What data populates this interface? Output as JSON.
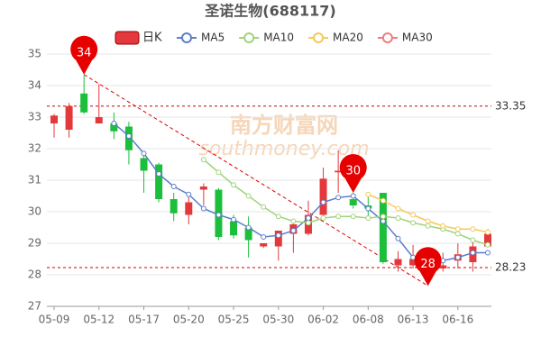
{
  "chart_data": {
    "type": "candlestick",
    "title": "圣诺生物(688117)",
    "watermark": [
      "南方财富网",
      "southmoney.com"
    ],
    "categories": [
      "05-09",
      null,
      null,
      "05-12",
      null,
      null,
      "05-17",
      null,
      null,
      "05-20",
      null,
      null,
      "05-25",
      null,
      null,
      "05-30",
      null,
      null,
      "06-02",
      null,
      null,
      "06-08",
      null,
      null,
      "06-13",
      null,
      null,
      "06-16",
      null,
      null
    ],
    "candle_name": "日K",
    "up_color": "#e4393c",
    "down_color": "#1bbf3b",
    "open": [
      32.8,
      32.6,
      33.75,
      32.8,
      32.8,
      32.7,
      31.7,
      31.5,
      30.4,
      29.9,
      30.7,
      30.7,
      29.7,
      29.5,
      28.9,
      28.9,
      29.3,
      29.3,
      29.9,
      31.25,
      30.4,
      30.2,
      30.6,
      28.3,
      28.3,
      28.45,
      28.2,
      28.45,
      28.4,
      28.9
    ],
    "high": [
      33.1,
      33.45,
      34.35,
      34.05,
      33.15,
      32.85,
      31.8,
      31.55,
      30.6,
      30.5,
      30.9,
      30.75,
      29.9,
      29.85,
      29.0,
      29.4,
      29.7,
      30.35,
      31.4,
      31.95,
      30.6,
      30.6,
      30.6,
      28.75,
      28.95,
      28.7,
      28.7,
      29.0,
      29.05,
      29.45
    ],
    "low": [
      32.35,
      32.35,
      33.1,
      32.8,
      32.3,
      31.5,
      30.6,
      30.3,
      29.7,
      29.6,
      30.2,
      29.1,
      29.15,
      28.55,
      28.85,
      28.45,
      28.7,
      29.25,
      29.8,
      30.6,
      30.1,
      29.8,
      28.35,
      28.1,
      28.2,
      27.65,
      28.1,
      28.2,
      28.1,
      28.9
    ],
    "close": [
      33.05,
      33.35,
      33.15,
      33.0,
      32.55,
      31.95,
      31.3,
      30.4,
      29.95,
      30.3,
      30.8,
      29.2,
      29.25,
      29.1,
      29.0,
      29.4,
      29.6,
      29.9,
      31.05,
      31.3,
      30.2,
      30.1,
      28.4,
      28.5,
      28.5,
      28.35,
      28.3,
      28.65,
      28.9,
      29.3
    ],
    "series": [
      {
        "name": "MA5",
        "color": "#5b7fc8",
        "values": [
          null,
          null,
          null,
          null,
          32.8,
          32.4,
          31.85,
          31.2,
          30.8,
          30.55,
          30.1,
          29.9,
          29.75,
          29.5,
          29.2,
          29.25,
          29.4,
          29.8,
          30.3,
          30.45,
          30.5,
          30.1,
          29.7,
          29.15,
          28.55,
          28.4,
          28.45,
          28.55,
          28.7,
          28.7
        ]
      },
      {
        "name": "MA10",
        "color": "#9fd47a",
        "values": [
          null,
          null,
          null,
          null,
          null,
          null,
          null,
          null,
          null,
          null,
          31.65,
          31.25,
          30.85,
          30.5,
          30.15,
          29.85,
          29.7,
          29.65,
          29.8,
          29.85,
          29.85,
          29.8,
          29.85,
          29.8,
          29.65,
          29.55,
          29.45,
          29.3,
          29.1,
          28.95
        ]
      },
      {
        "name": "MA20",
        "color": "#f5c95a",
        "values": [
          null,
          null,
          null,
          null,
          null,
          null,
          null,
          null,
          null,
          null,
          null,
          null,
          null,
          null,
          null,
          null,
          null,
          null,
          null,
          null,
          null,
          30.55,
          30.35,
          30.1,
          29.9,
          29.7,
          29.55,
          29.45,
          29.45,
          29.35
        ]
      },
      {
        "name": "MA30",
        "color": "#ef7d7d",
        "values": [
          null,
          null,
          null,
          null,
          null,
          null,
          null,
          null,
          null,
          null,
          null,
          null,
          null,
          null,
          null,
          null,
          null,
          null,
          null,
          null,
          null,
          null,
          null,
          null,
          null,
          null,
          null,
          null,
          null,
          null
        ]
      }
    ],
    "pins": [
      {
        "label": "34",
        "index": 2,
        "value": 34.35
      },
      {
        "label": "30",
        "index": 20,
        "value": 30.6
      },
      {
        "label": "28",
        "index": 25,
        "value": 27.65
      }
    ],
    "trend_line": [
      [
        2,
        34.35
      ],
      [
        25,
        27.65
      ]
    ],
    "reference_lines": [
      33.35,
      28.23
    ],
    "ylim": [
      27,
      35
    ],
    "yticks": [
      27,
      28,
      29,
      30,
      31,
      32,
      33,
      34,
      35
    ],
    "grid": true
  }
}
